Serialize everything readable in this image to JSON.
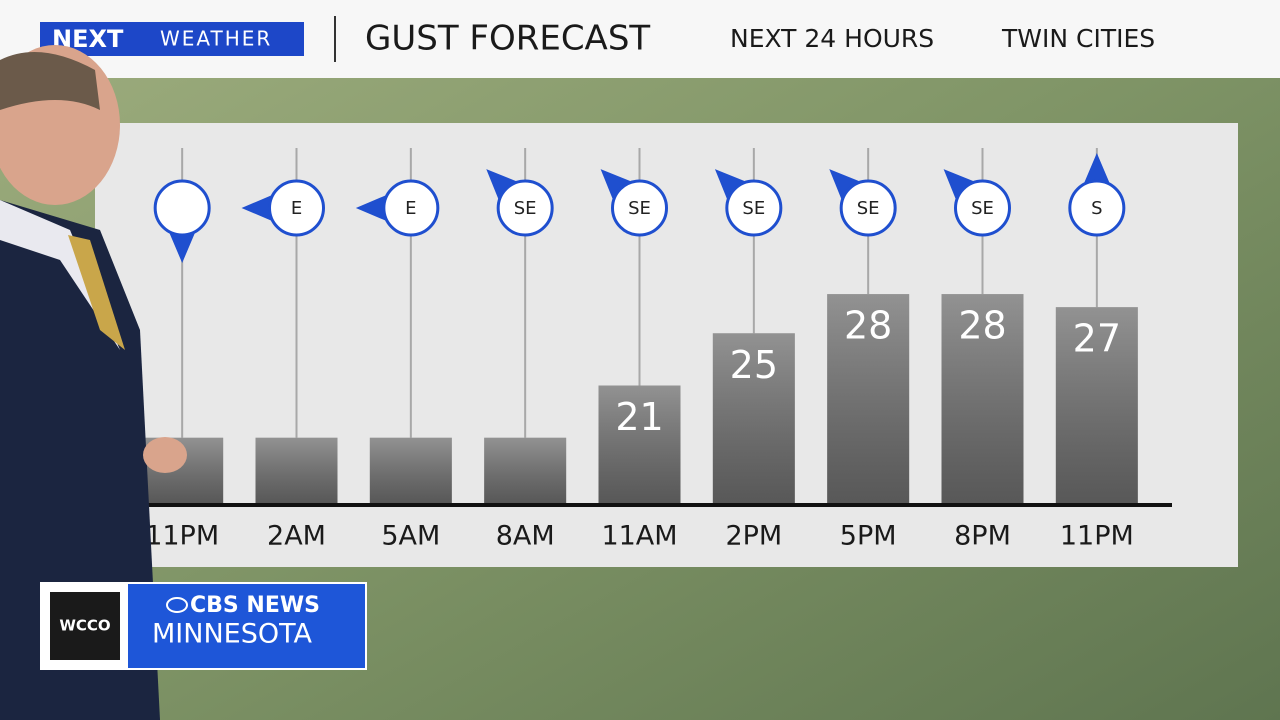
{
  "header": {
    "logo": "NEXT",
    "logo_sub": "WEATHER",
    "title": "GUST FORECAST",
    "subtitle": "NEXT 24 HOURS",
    "location": "TWIN CITIES"
  },
  "chart_data": {
    "type": "bar",
    "categories": [
      "11PM",
      "2AM",
      "5AM",
      "8AM",
      "11AM",
      "2PM",
      "5PM",
      "8PM",
      "11PM"
    ],
    "values": [
      17,
      17,
      17,
      17,
      21,
      25,
      28,
      28,
      27
    ],
    "value_labels": [
      null,
      null,
      null,
      null,
      "21",
      "25",
      "28",
      "28",
      "27"
    ],
    "wind_directions": [
      null,
      "E",
      "E",
      "SE",
      "SE",
      "SE",
      "SE",
      "SE",
      "S"
    ],
    "color": "#6e6e6e",
    "ylim": [
      12,
      30
    ]
  },
  "bug": {
    "station": "WCCO",
    "network": "CBS NEWS",
    "region": "MINNESOTA"
  }
}
